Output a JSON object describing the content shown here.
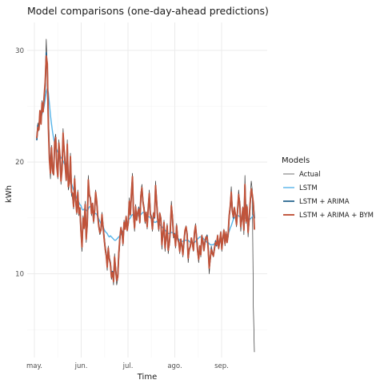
{
  "chart_data": {
    "type": "line",
    "title": "Model comparisons (one-day-ahead predictions)",
    "xlabel": "Time",
    "ylabel": "kWh",
    "x_ticks": [
      "may.",
      "jun.",
      "jul.",
      "ago.",
      "sep."
    ],
    "y_ticks": [
      10,
      20,
      30
    ],
    "ylim": [
      2.5,
      32.5
    ],
    "grid": true,
    "legend_position": "right",
    "legend_title": "Models",
    "series": [
      {
        "name": "Actual",
        "color": "#333333",
        "values": [
          22.0,
          23.5,
          22.8,
          24.5,
          23.5,
          25.5,
          24.8,
          26.0,
          27.2,
          31.0,
          28.0,
          22.5,
          20.0,
          18.5,
          21.5,
          19.0,
          18.8,
          22.0,
          22.5,
          19.5,
          18.5,
          22.0,
          20.5,
          18.0,
          19.5,
          23.0,
          21.0,
          19.8,
          18.3,
          22.0,
          17.5,
          18.0,
          20.8,
          17.0,
          16.8,
          15.8,
          18.8,
          16.3,
          15.3,
          17.5,
          15.2,
          15.8,
          13.5,
          12.0,
          15.2,
          14.0,
          16.5,
          12.8,
          14.5,
          18.8,
          17.0,
          16.8,
          15.2,
          16.3,
          14.5,
          15.8,
          17.5,
          16.5,
          15.0,
          14.0,
          13.5,
          13.8,
          15.5,
          14.2,
          13.0,
          12.0,
          11.5,
          10.3,
          12.5,
          11.2,
          10.8,
          9.5,
          10.0,
          9.0,
          11.8,
          10.2,
          9.0,
          9.5,
          12.0,
          13.5,
          14.2,
          13.8,
          12.5,
          14.8,
          14.0,
          15.2,
          13.8,
          14.5,
          16.8,
          15.2,
          17.5,
          19.0,
          15.0,
          13.8,
          16.2,
          14.8,
          15.5,
          16.0,
          14.5,
          17.3,
          18.0,
          16.5,
          15.8,
          14.5,
          15.5,
          14.0,
          16.0,
          17.5,
          15.2,
          15.0,
          13.8,
          15.5,
          15.0,
          18.3,
          16.5,
          14.8,
          13.8,
          15.5,
          15.0,
          12.2,
          13.5,
          14.8,
          12.0,
          13.0,
          14.5,
          11.8,
          12.5,
          14.0,
          16.5,
          15.2,
          13.2,
          13.5,
          12.3,
          14.5,
          13.0,
          12.8,
          11.8,
          13.0,
          12.5,
          11.5,
          12.8,
          14.0,
          14.3,
          13.5,
          11.0,
          12.0,
          12.5,
          13.2,
          12.8,
          12.0,
          13.8,
          14.5,
          13.2,
          11.8,
          11.0,
          12.5,
          11.5,
          13.5,
          13.0,
          12.0,
          12.8,
          13.3,
          13.5,
          12.2,
          10.0,
          11.2,
          12.5,
          11.8,
          11.5,
          12.2,
          13.0,
          12.5,
          13.5,
          12.2,
          12.8,
          13.8,
          12.0,
          13.2,
          14.0,
          12.5,
          13.8,
          12.8,
          13.5,
          15.5,
          16.2,
          17.8,
          15.5,
          14.8,
          16.0,
          15.2,
          14.2,
          15.8,
          17.5,
          16.5,
          13.8,
          14.8,
          16.0,
          13.5,
          18.8,
          14.5,
          16.2,
          13.3,
          14.8,
          16.8,
          18.3,
          17.5,
          7.0,
          3.0
        ]
      },
      {
        "name": "LSTM",
        "color": "#56B4E9",
        "values": [
          22.5,
          23.0,
          23.2,
          23.6,
          24.0,
          24.3,
          24.6,
          25.0,
          25.6,
          26.3,
          26.6,
          26.2,
          25.2,
          24.2,
          23.4,
          22.7,
          22.1,
          21.7,
          21.4,
          21.1,
          20.9,
          20.8,
          20.6,
          20.4,
          20.3,
          20.1,
          19.9,
          19.7,
          19.5,
          19.2,
          18.8,
          18.5,
          18.3,
          18.1,
          17.8,
          17.5,
          17.3,
          17.0,
          16.8,
          16.6,
          16.4,
          16.2,
          16.1,
          15.8,
          15.7,
          15.8,
          15.8,
          15.7,
          15.6,
          15.8,
          16.0,
          16.0,
          15.9,
          15.8,
          15.6,
          15.4,
          15.4,
          15.3,
          15.1,
          14.9,
          14.7,
          14.5,
          14.3,
          14.2,
          14.0,
          13.8,
          13.7,
          13.6,
          13.4,
          13.3,
          13.4,
          13.3,
          13.2,
          13.1,
          13.0,
          13.0,
          13.1,
          13.2,
          13.3,
          13.4,
          13.5,
          13.6,
          13.8,
          14.0,
          14.2,
          14.4,
          14.6,
          14.8,
          14.9,
          15.0,
          15.2,
          15.3,
          15.2,
          15.1,
          15.1,
          15.1,
          15.2,
          15.2,
          15.2,
          15.3,
          15.4,
          15.5,
          15.5,
          15.4,
          15.3,
          15.2,
          15.1,
          15.1,
          15.0,
          14.9,
          14.8,
          14.7,
          14.6,
          14.6,
          14.7,
          14.6,
          14.5,
          14.4,
          14.3,
          14.2,
          14.1,
          14.0,
          13.9,
          13.8,
          13.7,
          13.6,
          13.6,
          13.6,
          13.7,
          13.7,
          13.6,
          13.5,
          13.4,
          13.3,
          13.2,
          13.1,
          13.0,
          13.0,
          12.9,
          12.9,
          12.9,
          13.0,
          13.0,
          13.0,
          13.0,
          12.9,
          12.8,
          12.8,
          12.7,
          12.7,
          12.8,
          12.9,
          13.0,
          13.1,
          13.2,
          13.3,
          13.3,
          13.3,
          13.2,
          13.1,
          13.0,
          12.9,
          12.8,
          12.8,
          12.7,
          12.6,
          12.6,
          12.6,
          12.6,
          12.7,
          12.7,
          12.8,
          12.8,
          12.9,
          13.0,
          13.1,
          13.1,
          13.2,
          13.2,
          13.3,
          13.4,
          13.5,
          13.6,
          13.8,
          14.1,
          14.3,
          14.6,
          14.9,
          15.0,
          15.1,
          15.1,
          15.2,
          15.2,
          15.1,
          15.0,
          15.0,
          15.0,
          15.1,
          15.0,
          14.9,
          14.9,
          14.9,
          14.8,
          14.9,
          15.0,
          15.1,
          15.3,
          15.0
        ]
      },
      {
        "name": "LSTM + ARIMA",
        "color": "#1F5F8B",
        "values": [
          22.0,
          23.3,
          23.0,
          24.3,
          23.7,
          25.0,
          24.8,
          25.7,
          26.8,
          29.8,
          28.3,
          23.6,
          20.8,
          19.2,
          21.0,
          19.4,
          19.1,
          21.4,
          22.0,
          19.9,
          18.9,
          21.4,
          20.5,
          18.6,
          19.4,
          22.3,
          21.0,
          19.9,
          18.6,
          21.3,
          18.0,
          18.2,
          20.3,
          17.4,
          17.0,
          16.1,
          18.2,
          16.6,
          15.6,
          17.1,
          15.5,
          15.8,
          13.9,
          12.6,
          14.8,
          14.2,
          16.0,
          13.3,
          14.4,
          18.1,
          17.0,
          16.8,
          15.5,
          16.2,
          14.8,
          15.6,
          17.1,
          16.4,
          15.2,
          14.3,
          13.8,
          13.9,
          15.2,
          14.3,
          13.3,
          12.4,
          11.8,
          10.8,
          12.2,
          11.4,
          11.0,
          9.9,
          10.2,
          9.4,
          11.4,
          10.4,
          9.5,
          9.8,
          11.7,
          13.1,
          14.0,
          13.8,
          12.8,
          14.5,
          14.1,
          15.0,
          14.0,
          14.5,
          16.4,
          15.4,
          17.1,
          18.5,
          15.4,
          14.2,
          15.9,
          14.9,
          15.4,
          15.9,
          14.7,
          16.9,
          17.6,
          16.5,
          15.9,
          14.8,
          15.4,
          14.3,
          15.8,
          17.1,
          15.4,
          15.1,
          14.1,
          15.3,
          15.0,
          17.8,
          16.5,
          15.0,
          14.1,
          15.3,
          15.0,
          12.7,
          13.5,
          14.5,
          12.4,
          13.1,
          14.2,
          12.2,
          12.6,
          13.8,
          16.0,
          15.2,
          13.5,
          13.6,
          12.6,
          14.2,
          13.2,
          12.9,
          12.1,
          13.0,
          12.6,
          11.8,
          12.8,
          13.8,
          14.1,
          13.6,
          11.5,
          12.1,
          12.5,
          13.1,
          12.8,
          12.2,
          13.6,
          14.2,
          13.3,
          12.1,
          11.4,
          12.4,
          11.8,
          13.3,
          13.0,
          12.2,
          12.8,
          13.2,
          13.4,
          12.4,
          10.6,
          11.3,
          12.3,
          11.9,
          11.7,
          12.2,
          12.9,
          12.5,
          13.3,
          12.4,
          12.8,
          13.6,
          12.3,
          13.1,
          13.8,
          12.8,
          13.6,
          12.9,
          13.4,
          15.1,
          15.9,
          17.2,
          15.7,
          15.0,
          15.8,
          15.3,
          14.5,
          15.6,
          17.0,
          16.4,
          14.3,
          14.8,
          15.8,
          14.0,
          17.9,
          14.8,
          15.9,
          13.8,
          14.8,
          16.3,
          17.5,
          17.0,
          16.2,
          15.0
        ]
      },
      {
        "name": "LSTM + ARIMA + BYM",
        "color": "#C0533A",
        "values": [
          22.2,
          23.1,
          22.9,
          24.6,
          23.4,
          25.3,
          24.5,
          25.9,
          27.2,
          29.5,
          28.8,
          23.2,
          20.2,
          19.0,
          21.3,
          19.2,
          18.9,
          21.8,
          22.2,
          19.6,
          18.7,
          21.7,
          20.6,
          18.3,
          19.3,
          22.6,
          21.1,
          19.6,
          18.4,
          21.6,
          17.8,
          18.1,
          20.5,
          17.3,
          17.2,
          16.0,
          18.5,
          16.5,
          15.5,
          17.3,
          15.4,
          15.9,
          13.8,
          12.4,
          15.0,
          14.1,
          16.2,
          13.1,
          14.5,
          18.4,
          17.1,
          16.7,
          15.4,
          16.3,
          14.7,
          15.7,
          17.3,
          16.5,
          15.1,
          14.2,
          13.7,
          13.9,
          15.3,
          14.2,
          13.2,
          12.3,
          11.7,
          10.6,
          12.3,
          11.3,
          10.9,
          9.7,
          10.1,
          9.3,
          11.5,
          10.3,
          9.4,
          9.7,
          11.8,
          13.2,
          14.1,
          13.7,
          12.7,
          14.6,
          14.0,
          15.1,
          13.9,
          14.6,
          16.5,
          15.3,
          17.2,
          18.7,
          15.3,
          14.1,
          16.0,
          14.8,
          15.5,
          15.8,
          14.6,
          17.0,
          17.7,
          16.4,
          15.8,
          14.7,
          15.5,
          14.2,
          15.9,
          17.2,
          15.3,
          15.0,
          14.0,
          15.4,
          15.1,
          17.9,
          16.4,
          14.9,
          14.0,
          15.4,
          14.9,
          12.6,
          13.6,
          14.6,
          12.3,
          13.2,
          14.3,
          12.1,
          12.7,
          13.9,
          16.1,
          15.1,
          13.4,
          13.5,
          12.5,
          14.3,
          13.1,
          12.8,
          12.0,
          13.1,
          12.5,
          11.7,
          12.9,
          13.9,
          14.2,
          13.5,
          11.4,
          12.2,
          12.4,
          13.2,
          12.7,
          12.1,
          13.7,
          14.3,
          13.2,
          12.0,
          11.3,
          12.5,
          11.7,
          13.4,
          12.9,
          12.1,
          12.9,
          13.3,
          13.3,
          12.3,
          10.5,
          11.4,
          12.2,
          11.8,
          11.6,
          12.3,
          12.8,
          12.6,
          13.4,
          12.3,
          12.9,
          13.7,
          12.2,
          13.2,
          13.9,
          12.7,
          13.7,
          12.8,
          13.5,
          15.2,
          16.0,
          17.3,
          15.6,
          15.1,
          15.9,
          15.2,
          14.4,
          15.7,
          17.1,
          16.3,
          14.2,
          14.9,
          15.9,
          13.9,
          18.0,
          14.7,
          16.0,
          13.7,
          14.9,
          16.4,
          17.6,
          17.1,
          16.3,
          14.0
        ]
      }
    ]
  }
}
